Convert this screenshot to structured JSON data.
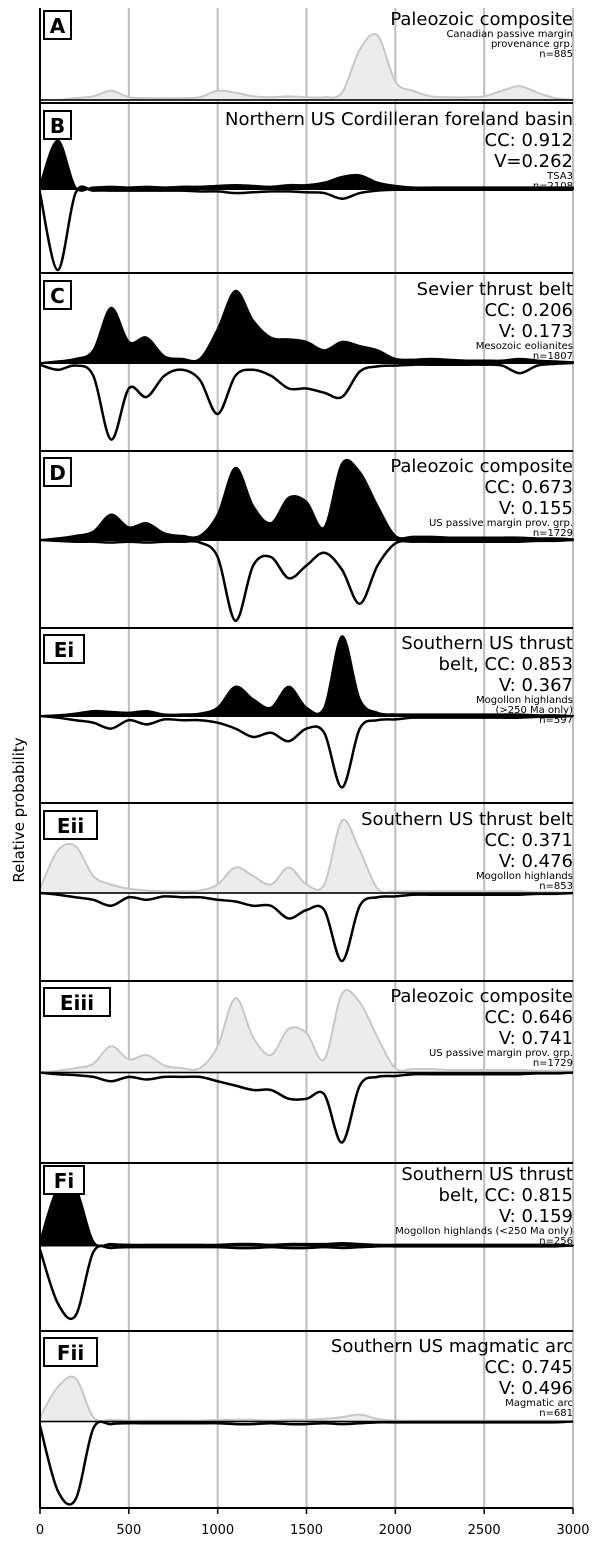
{
  "chart_data": {
    "type": "area",
    "ylabel": "Relative probability",
    "x": [
      0,
      100,
      200,
      300,
      400,
      500,
      600,
      700,
      800,
      900,
      1000,
      1100,
      1200,
      1300,
      1400,
      1500,
      1600,
      1700,
      1800,
      1900,
      2000,
      2100,
      2200,
      2300,
      2400,
      2500,
      2600,
      2700,
      2800,
      2900,
      3000
    ],
    "xlim": [
      0,
      3000
    ],
    "xticks": [
      0,
      500,
      1000,
      1500,
      2000,
      2500,
      3000
    ],
    "grid": true,
    "panels": [
      {
        "label": "A",
        "title_lines": [
          "Paleozoic composite"
        ],
        "note_lines": [
          "Canadian passive margin",
          "provenance grp.",
          "n=885"
        ],
        "ylim": [
          0,
          1
        ],
        "series": [
          {
            "color": "#c8c8c8",
            "fill": "#ececec",
            "values": [
              0,
              0,
              0.02,
              0.04,
              0.1,
              0.03,
              0.02,
              0.02,
              0.02,
              0.03,
              0.1,
              0.08,
              0.04,
              0.03,
              0.04,
              0.03,
              0.03,
              0.08,
              0.55,
              0.7,
              0.2,
              0.1,
              0.04,
              0.03,
              0.03,
              0.04,
              0.1,
              0.15,
              0.08,
              0.02,
              0
            ]
          }
        ]
      },
      {
        "label": "B",
        "title_lines": [
          "Northern US Cordilleran foreland basin",
          "CC: 0.912",
          "V=0.262"
        ],
        "note_lines": [
          "TSA3",
          "n=2108"
        ],
        "ylim": [
          -1,
          1
        ],
        "series": [
          {
            "color": "#000000",
            "fill": "#000000",
            "values": [
              0.05,
              0.6,
              0.02,
              0.02,
              0.03,
              0.02,
              0.03,
              0.02,
              0.03,
              0.03,
              0.04,
              0.05,
              0.04,
              0.03,
              0.05,
              0.05,
              0.08,
              0.15,
              0.17,
              0.08,
              0.04,
              0.02,
              0.02,
              0.02,
              0.02,
              0.02,
              0.02,
              0.02,
              0.02,
              0.02,
              0.02
            ]
          },
          {
            "color": "#000000",
            "values": [
              -0.05,
              -1,
              -0.05,
              -0.02,
              -0.02,
              -0.02,
              -0.02,
              -0.02,
              -0.02,
              -0.03,
              -0.03,
              -0.05,
              -0.04,
              -0.03,
              -0.03,
              -0.04,
              -0.05,
              -0.12,
              -0.05,
              -0.02,
              -0.01,
              -0.01,
              -0.01,
              -0.01,
              -0.01,
              -0.01,
              -0.01,
              -0.01,
              -0.01,
              -0.01,
              -0.01
            ]
          }
        ]
      },
      {
        "label": "C",
        "title_lines": [
          "Sevier thrust belt",
          "CC: 0.206",
          "V: 0.173"
        ],
        "note_lines": [
          "Mesozoic eolianites",
          "n=1807"
        ],
        "ylim": [
          -1,
          1
        ],
        "series": [
          {
            "color": "#000000",
            "fill": "#000000",
            "values": [
              0,
              0.02,
              0.05,
              0.15,
              0.65,
              0.25,
              0.3,
              0.08,
              0.05,
              0.05,
              0.4,
              0.85,
              0.5,
              0.3,
              0.28,
              0.25,
              0.15,
              0.25,
              0.2,
              0.15,
              0.05,
              0.04,
              0.05,
              0.04,
              0.03,
              0.03,
              0.03,
              0.05,
              0.03,
              0.02,
              0.01
            ]
          },
          {
            "color": "#000000",
            "values": [
              -0.02,
              -0.08,
              -0.03,
              -0.15,
              -0.9,
              -0.3,
              -0.4,
              -0.15,
              -0.08,
              -0.2,
              -0.6,
              -0.15,
              -0.08,
              -0.15,
              -0.3,
              -0.3,
              -0.35,
              -0.4,
              -0.1,
              -0.04,
              -0.03,
              -0.02,
              -0.02,
              -0.02,
              -0.02,
              -0.02,
              -0.03,
              -0.12,
              -0.03,
              -0.01,
              0
            ]
          }
        ]
      },
      {
        "label": "D",
        "title_lines": [
          "Paleozoic composite",
          "CC: 0.673",
          "V: 0.155"
        ],
        "note_lines": [
          "US passive margin prov. grp.",
          "n=1729"
        ],
        "ylim": [
          -1,
          1
        ],
        "series": [
          {
            "color": "#000000",
            "fill": "#000000",
            "values": [
              0,
              0.02,
              0.05,
              0.1,
              0.3,
              0.15,
              0.2,
              0.08,
              0.05,
              0.05,
              0.3,
              0.85,
              0.4,
              0.2,
              0.5,
              0.45,
              0.15,
              0.9,
              0.8,
              0.4,
              0.05,
              0.04,
              0.04,
              0.03,
              0.03,
              0.03,
              0.03,
              0.03,
              0.02,
              0.02,
              0.01
            ]
          },
          {
            "color": "#000000",
            "values": [
              0,
              -0.01,
              -0.02,
              -0.02,
              -0.03,
              -0.02,
              -0.03,
              -0.02,
              -0.02,
              -0.03,
              -0.2,
              -0.95,
              -0.3,
              -0.2,
              -0.45,
              -0.3,
              -0.15,
              -0.35,
              -0.75,
              -0.3,
              -0.04,
              -0.02,
              -0.02,
              -0.02,
              -0.02,
              -0.02,
              -0.02,
              -0.02,
              -0.01,
              -0.01,
              0
            ]
          }
        ]
      },
      {
        "label": "Ei",
        "title_lines": [
          "Southern US thrust",
          "belt, CC: 0.853",
          "V: 0.367"
        ],
        "note_lines": [
          "Mogollon highlands",
          "(>250 Ma only)",
          "n=597"
        ],
        "ylim": [
          -1,
          1
        ],
        "series": [
          {
            "color": "#000000",
            "fill": "#000000",
            "values": [
              0,
              0.01,
              0.03,
              0.06,
              0.05,
              0.04,
              0.06,
              0.02,
              0.02,
              0.03,
              0.1,
              0.35,
              0.2,
              0.1,
              0.35,
              0.1,
              0.1,
              0.95,
              0.2,
              0.04,
              0.02,
              0.02,
              0.02,
              0.02,
              0.02,
              0.02,
              0.02,
              0.02,
              0.01,
              0.01,
              0
            ]
          },
          {
            "color": "#000000",
            "values": [
              0,
              -0.02,
              -0.05,
              -0.08,
              -0.15,
              -0.05,
              -0.1,
              -0.04,
              -0.05,
              -0.05,
              -0.08,
              -0.15,
              -0.25,
              -0.2,
              -0.3,
              -0.15,
              -0.2,
              -0.85,
              -0.15,
              -0.05,
              -0.04,
              -0.02,
              -0.02,
              -0.02,
              -0.02,
              -0.02,
              -0.02,
              -0.02,
              -0.01,
              -0.01,
              0
            ]
          }
        ]
      },
      {
        "label": "Eii",
        "title_lines": [
          "Southern US thrust belt",
          "CC: 0.371",
          "V: 0.476"
        ],
        "note_lines": [
          "Mogollon highlands",
          "n=853"
        ],
        "ylim": [
          -1,
          1
        ],
        "series": [
          {
            "color": "#c8c8c8",
            "fill": "#ececec",
            "values": [
              0.05,
              0.5,
              0.55,
              0.2,
              0.1,
              0.05,
              0.03,
              0.02,
              0.02,
              0.03,
              0.1,
              0.3,
              0.2,
              0.1,
              0.3,
              0.1,
              0.1,
              0.85,
              0.5,
              0.05,
              0.02,
              0.02,
              0.02,
              0.02,
              0.02,
              0.02,
              0.02,
              0.02,
              0.01,
              0.01,
              0
            ]
          },
          {
            "color": "#000000",
            "values": [
              0,
              -0.02,
              -0.05,
              -0.08,
              -0.15,
              -0.05,
              -0.08,
              -0.04,
              -0.05,
              -0.05,
              -0.08,
              -0.1,
              -0.15,
              -0.15,
              -0.3,
              -0.2,
              -0.2,
              -0.8,
              -0.15,
              -0.05,
              -0.04,
              -0.02,
              -0.02,
              -0.02,
              -0.02,
              -0.02,
              -0.02,
              -0.02,
              -0.01,
              -0.01,
              0
            ]
          }
        ]
      },
      {
        "label": "Eiii",
        "title_lines": [
          "Paleozoic composite",
          "CC: 0.646",
          "V: 0.741"
        ],
        "note_lines": [
          "US passive margin prov. grp.",
          "n=1729"
        ],
        "ylim": [
          -1,
          1
        ],
        "series": [
          {
            "color": "#c8c8c8",
            "fill": "#ececec",
            "values": [
              0,
              0.02,
              0.05,
              0.1,
              0.3,
              0.15,
              0.2,
              0.08,
              0.05,
              0.05,
              0.3,
              0.85,
              0.4,
              0.2,
              0.5,
              0.45,
              0.15,
              0.9,
              0.8,
              0.4,
              0.05,
              0.04,
              0.04,
              0.03,
              0.03,
              0.03,
              0.03,
              0.03,
              0.02,
              0.02,
              0.01
            ]
          },
          {
            "color": "#000000",
            "values": [
              0,
              -0.02,
              -0.03,
              -0.05,
              -0.1,
              -0.05,
              -0.08,
              -0.05,
              -0.05,
              -0.05,
              -0.1,
              -0.15,
              -0.2,
              -0.2,
              -0.3,
              -0.3,
              -0.25,
              -0.8,
              -0.15,
              -0.05,
              -0.04,
              -0.02,
              -0.02,
              -0.02,
              -0.02,
              -0.02,
              -0.02,
              -0.02,
              -0.01,
              -0.01,
              0
            ]
          }
        ]
      },
      {
        "label": "Fi",
        "title_lines": [
          "Southern US thrust",
          "belt, CC: 0.815",
          "V: 0.159"
        ],
        "note_lines": [
          "Mogollon highlands (<250 Ma only)",
          "n=256"
        ],
        "ylim": [
          -1,
          1
        ],
        "series": [
          {
            "color": "#000000",
            "fill": "#000000",
            "values": [
              0.05,
              0.7,
              0.7,
              0.05,
              0.02,
              0.01,
              0.01,
              0.01,
              0.01,
              0.01,
              0.01,
              0.02,
              0.02,
              0.01,
              0.02,
              0.02,
              0.02,
              0.03,
              0.02,
              0.01,
              0.01,
              0.01,
              0.01,
              0.01,
              0.01,
              0.01,
              0.01,
              0.01,
              0.01,
              0.01,
              0
            ]
          },
          {
            "color": "#000000",
            "values": [
              -0.05,
              -0.7,
              -0.85,
              -0.08,
              -0.03,
              -0.02,
              -0.02,
              -0.02,
              -0.02,
              -0.02,
              -0.02,
              -0.03,
              -0.03,
              -0.02,
              -0.03,
              -0.03,
              -0.02,
              -0.03,
              -0.02,
              -0.01,
              -0.01,
              -0.01,
              -0.01,
              -0.01,
              -0.01,
              -0.01,
              -0.01,
              -0.01,
              -0.01,
              -0.01,
              0
            ]
          }
        ]
      },
      {
        "label": "Fii",
        "title_lines": [
          "Southern US magmatic arc",
          "CC: 0.745",
          "V: 0.496"
        ],
        "note_lines": [
          "Magmatic arc",
          "n=681"
        ],
        "ylim": [
          -1,
          1
        ],
        "series": [
          {
            "color": "#c8c8c8",
            "fill": "#ececec",
            "values": [
              0.05,
              0.4,
              0.5,
              0.05,
              0.02,
              0.01,
              0.01,
              0.01,
              0.01,
              0.01,
              0.02,
              0.02,
              0.02,
              0.01,
              0.02,
              0.02,
              0.03,
              0.05,
              0.08,
              0.03,
              0.01,
              0.01,
              0.01,
              0.01,
              0.01,
              0.01,
              0.01,
              0.01,
              0.01,
              0.01,
              0
            ]
          },
          {
            "color": "#000000",
            "values": [
              -0.05,
              -0.8,
              -0.9,
              -0.08,
              -0.03,
              -0.02,
              -0.02,
              -0.02,
              -0.02,
              -0.02,
              -0.02,
              -0.03,
              -0.03,
              -0.02,
              -0.03,
              -0.03,
              -0.02,
              -0.03,
              -0.02,
              -0.01,
              -0.01,
              -0.01,
              -0.01,
              -0.01,
              -0.01,
              -0.01,
              -0.01,
              -0.01,
              -0.01,
              -0.01,
              0
            ]
          }
        ]
      }
    ]
  }
}
